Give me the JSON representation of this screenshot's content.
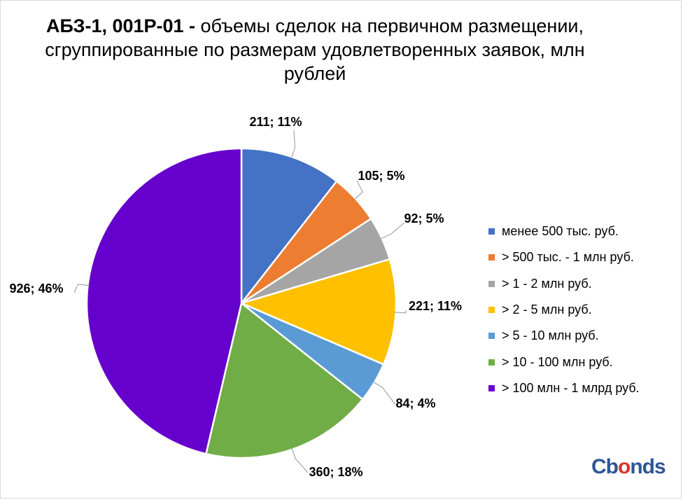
{
  "chart_data": {
    "type": "pie",
    "title_bold": "АБЗ-1, 001P-01 -",
    "title_rest": " объемы сделок на первичном размещении, сгруппированные по размерам удовлетворенных заявок, млн рублей",
    "slices": [
      {
        "name": "менее 500 тыс. руб.",
        "value": 211,
        "percent": "11%",
        "label": "211; 11%",
        "color": "#4472c4"
      },
      {
        "name": "> 500 тыс. - 1 млн руб.",
        "value": 105,
        "percent": "5%",
        "label": "105; 5%",
        "color": "#ed7d31"
      },
      {
        "name": "> 1 - 2 млн руб.",
        "value": 92,
        "percent": "5%",
        "label": "92; 5%",
        "color": "#a5a5a5"
      },
      {
        "name": "> 2 - 5 млн руб.",
        "value": 221,
        "percent": "11%",
        "label": "221; 11%",
        "color": "#ffc000"
      },
      {
        "name": "> 5 - 10 млн руб.",
        "value": 84,
        "percent": "4%",
        "label": "84; 4%",
        "color": "#5b9bd5"
      },
      {
        "name": "> 10 - 100 млн руб.",
        "value": 360,
        "percent": "18%",
        "label": "360; 18%",
        "color": "#70ad47"
      },
      {
        "name": "> 100 млн - 1 млрд руб.",
        "value": 926,
        "percent": "46%",
        "label": "926; 46%",
        "color": "#6600cc"
      }
    ],
    "legend_position": "right"
  },
  "logo": {
    "text_main": "Cb",
    "text_accent": "o",
    "text_end": "nds"
  }
}
